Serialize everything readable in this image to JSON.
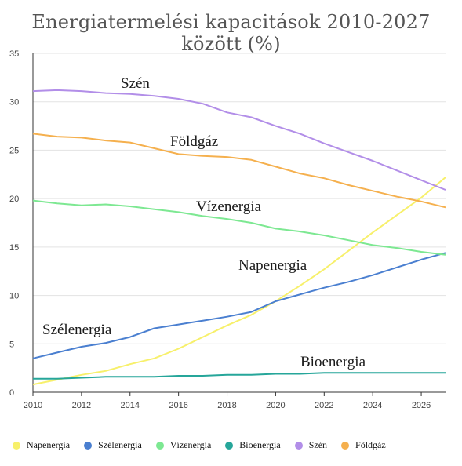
{
  "chart_data": {
    "type": "line",
    "title": "Energiatermelési kapacitások 2010-2027 között (%)",
    "xlabel": "",
    "ylabel": "",
    "x": [
      2010,
      2011,
      2012,
      2013,
      2014,
      2015,
      2016,
      2017,
      2018,
      2019,
      2020,
      2021,
      2022,
      2023,
      2024,
      2025,
      2026,
      2027
    ],
    "xticks": [
      "2010",
      "2012",
      "2014",
      "2016",
      "2018",
      "2020",
      "2022",
      "2024",
      "2026"
    ],
    "yticks": [
      "0",
      "5",
      "10",
      "15",
      "20",
      "25",
      "30",
      "35"
    ],
    "xlim": [
      2010,
      2027
    ],
    "ylim": [
      0,
      35
    ],
    "grid": "horizontal",
    "legend_position": "bottom",
    "series": [
      {
        "name": "Napenergia",
        "color": "#f7f06b",
        "values": [
          0.8,
          1.3,
          1.8,
          2.2,
          2.9,
          3.5,
          4.5,
          5.7,
          6.9,
          8.0,
          9.4,
          11.0,
          12.7,
          14.6,
          16.5,
          18.3,
          20.1,
          22.2
        ]
      },
      {
        "name": "Szélenergia",
        "color": "#4a7fd0",
        "values": [
          3.5,
          4.1,
          4.7,
          5.1,
          5.7,
          6.6,
          7.0,
          7.4,
          7.8,
          8.3,
          9.4,
          10.1,
          10.8,
          11.4,
          12.1,
          12.9,
          13.7,
          14.4
        ]
      },
      {
        "name": "Vízenergia",
        "color": "#7de892",
        "values": [
          19.8,
          19.5,
          19.3,
          19.4,
          19.2,
          18.9,
          18.6,
          18.2,
          17.9,
          17.5,
          16.9,
          16.6,
          16.2,
          15.7,
          15.2,
          14.9,
          14.5,
          14.2
        ]
      },
      {
        "name": "Bioenergia",
        "color": "#26a69a",
        "values": [
          1.4,
          1.4,
          1.5,
          1.6,
          1.6,
          1.6,
          1.7,
          1.7,
          1.8,
          1.8,
          1.9,
          1.9,
          2.0,
          2.0,
          2.0,
          2.0,
          2.0,
          2.0
        ]
      },
      {
        "name": "Szén",
        "color": "#b28ee8",
        "values": [
          31.1,
          31.2,
          31.1,
          30.9,
          30.8,
          30.6,
          30.3,
          29.8,
          28.9,
          28.4,
          27.5,
          26.7,
          25.7,
          24.8,
          23.9,
          22.9,
          21.9,
          20.9
        ]
      },
      {
        "name": "Földgáz",
        "color": "#f5b04e",
        "values": [
          26.7,
          26.4,
          26.3,
          26.0,
          25.8,
          25.2,
          24.6,
          24.4,
          24.3,
          24.0,
          23.3,
          22.6,
          22.1,
          21.4,
          20.8,
          20.2,
          19.7,
          19.1
        ]
      }
    ],
    "annotations": [
      {
        "text": "Szén",
        "series": "Szén"
      },
      {
        "text": "Földgáz",
        "series": "Földgáz"
      },
      {
        "text": "Vízenergia",
        "series": "Vízenergia"
      },
      {
        "text": "Napenergia",
        "series": "Napenergia"
      },
      {
        "text": "Szélenergia",
        "series": "Szélenergia"
      },
      {
        "text": "Bioenergia",
        "series": "Bioenergia"
      }
    ]
  }
}
